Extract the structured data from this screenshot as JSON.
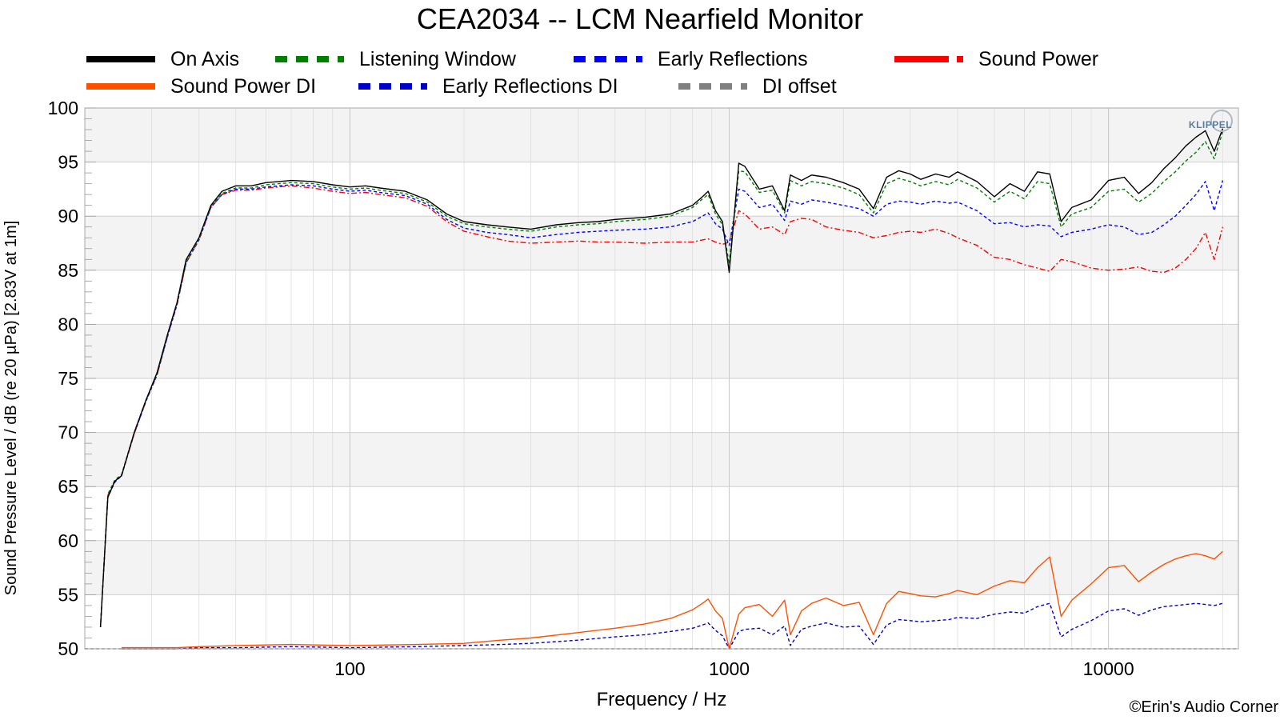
{
  "chart_data": {
    "type": "line",
    "title": "CEA2034 -- LCM Nearfield Monitor",
    "xlabel": "Frequency / Hz",
    "ylabel": "Sound Pressure Level / dB (re 20 µPa)  [2.83V at 1m]",
    "x_scale": "log",
    "xlim": [
      20,
      22000
    ],
    "ylim": [
      50,
      100
    ],
    "x_ticks": [
      100,
      1000,
      10000
    ],
    "x_tick_labels": [
      "100",
      "1000",
      "10000"
    ],
    "y_ticks": [
      50,
      55,
      60,
      65,
      70,
      75,
      80,
      85,
      90,
      95,
      100
    ],
    "y_tick_labels": [
      "50",
      "55",
      "60",
      "65",
      "70",
      "75",
      "80",
      "85",
      "90",
      "95",
      "100"
    ],
    "grid": true,
    "legend_position": "top",
    "watermark": "KLIPPEL",
    "credit": "©Erin's Audio Corner",
    "series": [
      {
        "name": "On Axis",
        "color": "#000000",
        "dash": "solid",
        "x": [
          22,
          23,
          24,
          25,
          27,
          29,
          31,
          33,
          35,
          37,
          40,
          43,
          46,
          50,
          55,
          60,
          65,
          70,
          80,
          90,
          100,
          110,
          120,
          140,
          160,
          180,
          200,
          230,
          260,
          300,
          350,
          400,
          450,
          500,
          600,
          700,
          800,
          850,
          880,
          920,
          960,
          1000,
          1060,
          1100,
          1200,
          1300,
          1400,
          1450,
          1550,
          1650,
          1800,
          2000,
          2200,
          2400,
          2600,
          2800,
          3000,
          3200,
          3500,
          3800,
          4000,
          4500,
          5000,
          5500,
          6000,
          6500,
          7000,
          7500,
          8000,
          9000,
          10000,
          11000,
          12000,
          13000,
          14000,
          15000,
          16000,
          17000,
          18000,
          19000,
          20000
        ],
        "y": [
          52,
          64,
          65.5,
          66,
          70,
          73,
          75.5,
          79,
          82,
          86,
          88,
          91,
          92.3,
          92.8,
          92.8,
          93.1,
          93.2,
          93.3,
          93.2,
          92.9,
          92.7,
          92.8,
          92.6,
          92.3,
          91.5,
          90.2,
          89.5,
          89.2,
          89.0,
          88.8,
          89.2,
          89.4,
          89.5,
          89.7,
          89.9,
          90.2,
          91.0,
          91.8,
          92.3,
          90.5,
          89.5,
          84.8,
          94.9,
          94.6,
          92.5,
          92.8,
          90.5,
          93.8,
          93.3,
          93.8,
          93.6,
          93.1,
          92.5,
          90.7,
          93.6,
          94.2,
          93.9,
          93.4,
          93.9,
          93.6,
          94.1,
          93.2,
          91.8,
          93.0,
          92.3,
          94.1,
          93.9,
          89.5,
          90.8,
          91.5,
          93.3,
          93.6,
          92.1,
          93.1,
          94.4,
          95.4,
          96.5,
          97.3,
          97.9,
          96.0,
          98.1
        ]
      },
      {
        "name": "Listening Window",
        "color": "#008000",
        "dash": "dashed",
        "x": [
          22,
          23,
          24,
          25,
          27,
          29,
          31,
          33,
          35,
          37,
          40,
          43,
          46,
          50,
          55,
          60,
          65,
          70,
          80,
          90,
          100,
          110,
          120,
          140,
          160,
          180,
          200,
          230,
          260,
          300,
          350,
          400,
          450,
          500,
          600,
          700,
          800,
          850,
          880,
          920,
          960,
          1000,
          1060,
          1100,
          1200,
          1300,
          1400,
          1450,
          1550,
          1650,
          1800,
          2000,
          2200,
          2400,
          2600,
          2800,
          3000,
          3200,
          3500,
          3800,
          4000,
          4500,
          5000,
          5500,
          6000,
          6500,
          7000,
          7500,
          8000,
          9000,
          10000,
          11000,
          12000,
          13000,
          14000,
          15000,
          16000,
          17000,
          18000,
          19000,
          20000
        ],
        "y": [
          52,
          64.3,
          65.6,
          66.1,
          70,
          73,
          75.4,
          78.9,
          81.9,
          85.8,
          87.9,
          90.9,
          92.1,
          92.6,
          92.6,
          92.9,
          93.0,
          93.1,
          93.0,
          92.7,
          92.5,
          92.6,
          92.4,
          92.1,
          91.3,
          90.0,
          89.3,
          89.0,
          88.8,
          88.6,
          89.0,
          89.2,
          89.3,
          89.5,
          89.7,
          90.0,
          90.8,
          91.6,
          92.0,
          90.2,
          89.2,
          85.6,
          94.2,
          94.1,
          92.2,
          92.4,
          90.3,
          93.3,
          92.8,
          93.2,
          93.0,
          92.6,
          92.0,
          90.3,
          93.0,
          93.5,
          93.2,
          92.8,
          93.2,
          92.9,
          93.4,
          92.6,
          91.3,
          92.3,
          91.6,
          93.2,
          93.0,
          89.0,
          90.2,
          90.8,
          92.3,
          92.5,
          91.3,
          92.1,
          93.2,
          94.1,
          95.1,
          95.9,
          96.9,
          95.3,
          97.8
        ]
      },
      {
        "name": "Early Reflections",
        "color": "#0000ff",
        "dash": "dashed",
        "x": [
          22,
          23,
          24,
          25,
          27,
          29,
          31,
          33,
          35,
          37,
          40,
          43,
          46,
          50,
          55,
          60,
          65,
          70,
          80,
          90,
          100,
          110,
          120,
          140,
          160,
          180,
          200,
          230,
          260,
          300,
          350,
          400,
          450,
          500,
          600,
          700,
          800,
          850,
          880,
          920,
          960,
          1000,
          1060,
          1100,
          1200,
          1300,
          1400,
          1450,
          1550,
          1650,
          1800,
          2000,
          2200,
          2400,
          2600,
          2800,
          3000,
          3200,
          3500,
          3800,
          4000,
          4500,
          5000,
          5500,
          6000,
          6500,
          7000,
          7500,
          8000,
          9000,
          10000,
          11000,
          12000,
          13000,
          14000,
          15000,
          16000,
          17000,
          18000,
          19000,
          20000
        ],
        "y": [
          52,
          64,
          65.4,
          66,
          69.9,
          72.9,
          75.3,
          78.8,
          81.8,
          85.7,
          87.8,
          90.8,
          92.0,
          92.5,
          92.5,
          92.7,
          92.8,
          92.9,
          92.8,
          92.5,
          92.3,
          92.4,
          92.2,
          91.9,
          91.1,
          89.7,
          88.9,
          88.5,
          88.3,
          88.0,
          88.3,
          88.5,
          88.6,
          88.7,
          88.8,
          89.0,
          89.5,
          90.0,
          90.3,
          89.3,
          88.8,
          87.3,
          92.5,
          92.3,
          90.8,
          91.1,
          89.6,
          91.4,
          91.1,
          91.5,
          91.3,
          91.0,
          90.7,
          90.0,
          91.1,
          91.4,
          91.3,
          91.1,
          91.4,
          91.2,
          91.3,
          90.5,
          89.3,
          89.4,
          89.0,
          89.2,
          89.1,
          88.1,
          88.5,
          88.8,
          89.2,
          89.0,
          88.3,
          88.5,
          89.2,
          90.0,
          91.0,
          92.0,
          93.2,
          90.5,
          93.3
        ]
      },
      {
        "name": "Sound Power",
        "color": "#ff0000",
        "dash": "dashdot",
        "x": [
          22,
          23,
          24,
          25,
          27,
          29,
          31,
          33,
          35,
          37,
          40,
          43,
          46,
          50,
          55,
          60,
          65,
          70,
          80,
          90,
          100,
          110,
          120,
          140,
          160,
          180,
          200,
          230,
          260,
          300,
          350,
          400,
          450,
          500,
          600,
          700,
          800,
          850,
          880,
          920,
          960,
          1000,
          1060,
          1100,
          1200,
          1300,
          1400,
          1450,
          1550,
          1650,
          1800,
          2000,
          2200,
          2400,
          2600,
          2800,
          3000,
          3200,
          3500,
          3800,
          4000,
          4500,
          5000,
          5500,
          6000,
          6500,
          7000,
          7500,
          8000,
          9000,
          10000,
          11000,
          12000,
          13000,
          14000,
          15000,
          16000,
          17000,
          18000,
          19000,
          20000
        ],
        "y": [
          52,
          64.2,
          65.5,
          66,
          69.9,
          72.9,
          75.3,
          78.8,
          81.8,
          85.7,
          87.8,
          90.8,
          92.0,
          92.4,
          92.4,
          92.6,
          92.7,
          92.8,
          92.6,
          92.3,
          92.1,
          92.2,
          92.0,
          91.7,
          90.9,
          89.5,
          88.6,
          88.1,
          87.7,
          87.5,
          87.6,
          87.7,
          87.6,
          87.6,
          87.5,
          87.6,
          87.6,
          87.8,
          87.9,
          87.6,
          87.4,
          87.6,
          90.5,
          90.2,
          88.8,
          89.0,
          88.3,
          89.5,
          89.8,
          89.7,
          89.0,
          88.7,
          88.5,
          88.0,
          88.2,
          88.5,
          88.6,
          88.5,
          88.8,
          88.4,
          88.0,
          87.3,
          86.2,
          86.0,
          85.5,
          85.2,
          84.9,
          86.0,
          85.8,
          85.2,
          85.0,
          85.1,
          85.3,
          84.9,
          84.8,
          85.2,
          86.0,
          87.0,
          88.5,
          86.0,
          89.0
        ]
      },
      {
        "name": "Sound Power DI",
        "color": "#ff5000",
        "dash": "solid",
        "x": [
          25,
          30,
          35,
          40,
          50,
          70,
          100,
          150,
          200,
          250,
          300,
          400,
          500,
          600,
          700,
          800,
          850,
          880,
          920,
          960,
          1000,
          1060,
          1100,
          1200,
          1300,
          1400,
          1450,
          1550,
          1650,
          1800,
          2000,
          2200,
          2400,
          2600,
          2800,
          3000,
          3200,
          3500,
          3800,
          4000,
          4500,
          5000,
          5500,
          6000,
          6500,
          7000,
          7500,
          8000,
          9000,
          10000,
          11000,
          12000,
          13000,
          14000,
          15000,
          16000,
          17000,
          18000,
          19000,
          20000
        ],
        "y": [
          50.1,
          50.1,
          50.1,
          50.2,
          50.3,
          50.4,
          50.3,
          50.4,
          50.5,
          50.8,
          51.0,
          51.5,
          51.9,
          52.3,
          52.8,
          53.6,
          54.2,
          54.6,
          53.5,
          52.8,
          49.8,
          53.2,
          53.8,
          54.1,
          53.0,
          54.5,
          51.3,
          53.5,
          54.2,
          54.7,
          54.0,
          54.3,
          51.3,
          54.2,
          55.3,
          55.1,
          54.9,
          54.8,
          55.1,
          55.4,
          55.0,
          55.8,
          56.3,
          56.1,
          57.5,
          58.5,
          53.0,
          54.5,
          56.0,
          57.5,
          57.7,
          56.2,
          57.1,
          57.8,
          58.3,
          58.6,
          58.8,
          58.6,
          58.3,
          59.0
        ]
      },
      {
        "name": "Early Reflections DI",
        "color": "#0000cc",
        "dash": "dashed",
        "x": [
          25,
          30,
          35,
          40,
          50,
          70,
          100,
          150,
          200,
          250,
          300,
          400,
          500,
          600,
          700,
          800,
          850,
          880,
          920,
          960,
          1000,
          1060,
          1100,
          1200,
          1300,
          1400,
          1450,
          1550,
          1650,
          1800,
          2000,
          2200,
          2400,
          2600,
          2800,
          3000,
          3200,
          3500,
          3800,
          4000,
          4500,
          5000,
          5500,
          6000,
          6500,
          7000,
          7500,
          8000,
          9000,
          10000,
          11000,
          12000,
          13000,
          14000,
          15000,
          16000,
          17000,
          18000,
          19000,
          20000
        ],
        "y": [
          50.0,
          50.0,
          50.0,
          50.1,
          50.1,
          50.2,
          50.1,
          50.2,
          50.3,
          50.4,
          50.5,
          50.8,
          51.1,
          51.3,
          51.6,
          51.9,
          52.2,
          52.4,
          51.7,
          51.2,
          49.9,
          51.6,
          51.8,
          51.9,
          51.3,
          52.1,
          50.3,
          51.8,
          52.1,
          52.4,
          52.0,
          52.1,
          50.4,
          52.2,
          52.7,
          52.6,
          52.5,
          52.6,
          52.7,
          52.9,
          52.8,
          53.2,
          53.4,
          53.3,
          53.9,
          54.2,
          51.1,
          51.8,
          52.6,
          53.5,
          53.7,
          53.1,
          53.6,
          53.9,
          54.0,
          54.1,
          54.2,
          54.1,
          54.0,
          54.2
        ]
      },
      {
        "name": "DI offset",
        "color": "#808080",
        "dash": "dashed",
        "x": [
          20,
          22000
        ],
        "y": [
          50,
          50
        ]
      }
    ]
  }
}
